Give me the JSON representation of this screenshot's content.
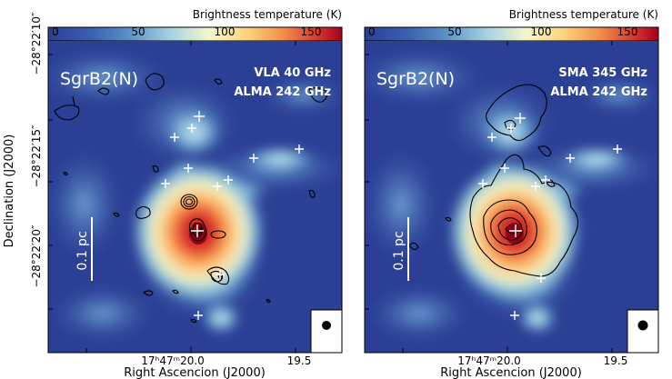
{
  "colorbar": {
    "label": "Brightness temperature (K)",
    "ticks": [
      "0",
      "50",
      "100",
      "150"
    ],
    "tick_values": [
      0,
      50,
      100,
      150
    ],
    "range": [
      0,
      170
    ],
    "colormap": [
      "#2b3f94",
      "#3b61b0",
      "#5b93c8",
      "#a9d3e3",
      "#f4f7cc",
      "#fdd37a",
      "#f48d4a",
      "#d9342b",
      "#a3001e"
    ]
  },
  "axes": {
    "ylabel": "Declination (J2000)",
    "xlabel": "Right Ascencion (J2000)",
    "ytick_labels": [
      "−28°22′10″",
      "−28°22′15″",
      "−28°22′20″"
    ],
    "xtick_main": "17ʰ47ᵐ20.0",
    "xtick_right": "19.5"
  },
  "panels": [
    {
      "source": "SgrB2(N)",
      "line1": "VLA 40 GHz",
      "line2": "ALMA 242 GHz",
      "scale_label": "0.1 pc"
    },
    {
      "source": "SgrB2(N)",
      "line1": "SMA 345 GHz",
      "line2": "ALMA 242 GHz",
      "scale_label": "0.1 pc"
    }
  ],
  "colors": {
    "background_map": "#2b3f94",
    "contour": "#000000",
    "markers": "#ffffff",
    "text_overlay": "#ffffff"
  }
}
